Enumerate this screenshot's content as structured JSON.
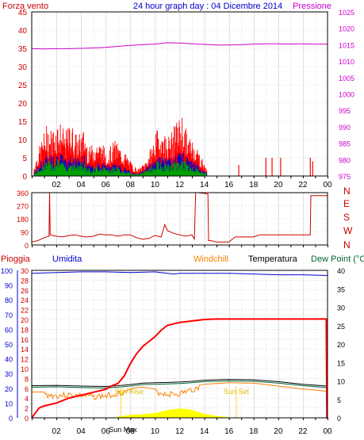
{
  "header": {
    "left_label": "Forza vento",
    "center_title": "24 hour graph day : 04 Dicembre 2014",
    "right_label": "Pressione"
  },
  "colors": {
    "wind_gust": "#ff0000",
    "wind_avg": "#0000cc",
    "wind_green": "#00a000",
    "pressure": "#cc00cc",
    "direction": "#cc0000",
    "rain": "#ff0000",
    "humidity": "#0000cc",
    "windchill": "#ff8000",
    "temperature": "#000000",
    "dewpoint": "#006633",
    "solar": "#ffff00",
    "frame": "#000000",
    "grid": "#c8c8c8",
    "left_axis_text": "#cc0000",
    "right_axis_text": "#cc00cc",
    "humidity_axis_text": "#0000cc"
  },
  "panel3_labels": {
    "pioggia": "Pioggia",
    "umidita": "Umidita",
    "windchill": "Windchill",
    "temperatura": "Temperatura",
    "dewpoint": "Dew Point (°C"
  },
  "annotations": {
    "sun_rise": "Sun Rise",
    "sun_set": "Sun Set",
    "sun_max": "Sun Max"
  },
  "x_ticks": [
    "02",
    "04",
    "06",
    "08",
    "10",
    "12",
    "14",
    "16",
    "18",
    "20",
    "22",
    "00"
  ],
  "chart_data": [
    {
      "type": "line",
      "name": "wind_pressure",
      "y_left_ticks": [
        0,
        5,
        10,
        15,
        20,
        25,
        30,
        35,
        40,
        45
      ],
      "y_right_ticks": [
        975,
        980,
        985,
        990,
        995,
        1000,
        1005,
        1010,
        1015,
        1020,
        1025
      ],
      "ylim_left": [
        0,
        45
      ],
      "ylim_right": [
        975,
        1025
      ],
      "pressure": {
        "x": [
          0,
          1,
          2,
          3,
          4,
          5,
          6,
          7,
          8,
          9,
          10,
          11,
          12,
          13,
          14,
          15,
          16,
          17,
          18,
          19,
          20,
          21,
          22,
          23,
          24
        ],
        "y": [
          1013.8,
          1013.7,
          1013.8,
          1013.8,
          1013.9,
          1014.0,
          1014.2,
          1014.5,
          1014.8,
          1015.0,
          1015.2,
          1015.6,
          1015.5,
          1015.3,
          1015.1,
          1014.9,
          1014.9,
          1015.0,
          1015.2,
          1015.3,
          1015.3,
          1015.2,
          1015.3,
          1015.2,
          1015.2
        ]
      },
      "gust_envelope": {
        "x": [
          0.2,
          0.7,
          1.2,
          1.7,
          2.2,
          2.7,
          3.2,
          3.7,
          4.2,
          4.7,
          5.2,
          5.7,
          6.2,
          6.7,
          7.2,
          7.7,
          8.2,
          8.7,
          9.2,
          9.7,
          10.2,
          10.7,
          11.2,
          11.7,
          12.2,
          12.7,
          13.2,
          13.7,
          14.2
        ],
        "y": [
          3,
          9,
          14,
          13,
          16,
          12,
          15,
          11,
          13,
          8,
          10,
          9,
          7,
          10,
          8,
          6,
          3,
          2,
          4,
          8,
          13,
          12,
          11,
          15,
          17,
          11,
          10,
          6,
          2
        ]
      },
      "avg_envelope": {
        "x": [
          0.2,
          0.7,
          1.2,
          1.7,
          2.2,
          2.7,
          3.2,
          3.7,
          4.2,
          4.7,
          5.2,
          5.7,
          6.2,
          6.7,
          7.2,
          7.7,
          8.2,
          8.7,
          9.2,
          9.7,
          10.2,
          10.7,
          11.2,
          11.7,
          12.2,
          12.7,
          13.2,
          13.7,
          14.2
        ],
        "y": [
          1,
          4,
          6,
          6,
          7,
          5,
          6,
          5,
          6,
          3,
          4,
          4,
          3,
          4,
          3,
          2,
          1,
          1,
          2,
          4,
          6,
          5,
          5,
          6,
          7,
          5,
          4,
          2,
          1
        ]
      },
      "gust_spikes": {
        "x": [
          16.8,
          19.0,
          19.5,
          20.2,
          22.6,
          22.8
        ],
        "y": [
          3,
          5,
          5,
          5,
          5,
          4
        ]
      }
    },
    {
      "type": "line",
      "name": "wind_direction",
      "y_left_ticks": [
        0,
        90,
        180,
        270,
        360
      ],
      "y_right_labels": [
        "N",
        "W",
        "S",
        "E",
        "N"
      ],
      "ylim": [
        0,
        360
      ],
      "x": [
        0.0,
        0.5,
        1.0,
        1.4,
        1.45,
        1.5,
        2.0,
        2.5,
        3.0,
        3.5,
        4.0,
        4.5,
        5.0,
        5.5,
        6.0,
        6.5,
        7.0,
        7.5,
        8.0,
        8.5,
        9.0,
        9.5,
        10.0,
        10.5,
        10.8,
        11.0,
        11.5,
        12.0,
        12.5,
        13.0,
        13.2,
        13.3,
        13.5,
        14.0,
        14.3,
        14.35,
        14.5,
        15.0,
        15.5,
        16.0,
        16.5,
        17.0,
        17.5,
        18.0,
        18.5,
        19.0,
        19.5,
        20.0,
        20.5,
        21.0,
        21.5,
        22.0,
        22.6,
        22.65,
        23.0,
        23.5,
        24.0
      ],
      "y": [
        20,
        30,
        50,
        60,
        360,
        70,
        60,
        55,
        65,
        70,
        60,
        55,
        60,
        75,
        70,
        70,
        60,
        70,
        70,
        50,
        40,
        45,
        65,
        55,
        140,
        100,
        80,
        70,
        60,
        70,
        40,
        360,
        360,
        355,
        350,
        30,
        30,
        20,
        20,
        20,
        55,
        55,
        55,
        55,
        70,
        70,
        70,
        70,
        70,
        70,
        70,
        70,
        70,
        340,
        340,
        340,
        340
      ]
    },
    {
      "type": "line",
      "name": "rain_humidity_temperature",
      "y_rain_ticks": [
        0,
        2,
        4,
        6,
        8,
        10,
        12,
        14,
        16,
        18,
        20,
        22,
        24,
        26,
        28,
        30
      ],
      "y_humidity_ticks": [
        0,
        10,
        20,
        30,
        40,
        50,
        60,
        70,
        80,
        90,
        100
      ],
      "y_temp_ticks": [
        0,
        5,
        10,
        15,
        20,
        25,
        30,
        35,
        40
      ],
      "ylim_rain": [
        0,
        30
      ],
      "ylim_humidity": [
        0,
        100
      ],
      "ylim_temp": [
        0,
        40
      ],
      "rain": {
        "x": [
          0.0,
          0.3,
          0.6,
          1.0,
          2.0,
          3.0,
          4.0,
          5.0,
          6.0,
          6.5,
          7.0,
          7.5,
          8.0,
          8.5,
          9.0,
          9.5,
          10.0,
          10.5,
          11.0,
          12.0,
          13.0,
          14.0,
          15.0,
          16.0,
          18.0,
          20.0,
          22.0,
          23.9,
          23.95,
          24.0
        ],
        "y": [
          0,
          1,
          2,
          2.4,
          3,
          4,
          4.6,
          5.2,
          5.8,
          6.5,
          7,
          8.5,
          11,
          13,
          14.5,
          15.5,
          16.5,
          17.8,
          18.8,
          19.4,
          19.7,
          20,
          20.1,
          20.1,
          20.1,
          20.1,
          20.1,
          20.1,
          0,
          0
        ]
      },
      "humidity": {
        "x": [
          0,
          2,
          4,
          6,
          8,
          10,
          11,
          11.5,
          12,
          14,
          16,
          18,
          20,
          22,
          24
        ],
        "y": [
          98,
          98.5,
          99,
          99,
          98.5,
          99,
          98,
          97.5,
          98,
          98,
          98,
          97.5,
          97,
          97,
          96.5
        ]
      },
      "windchill": {
        "x": [
          0,
          1,
          2,
          3,
          4,
          5,
          6,
          6.5,
          7,
          8,
          9,
          10,
          11,
          12,
          13,
          14,
          15,
          16,
          18,
          20,
          22,
          24
        ],
        "y": [
          7,
          7,
          6.8,
          7,
          6.8,
          6.5,
          6.7,
          7,
          7.5,
          8,
          8.3,
          7.8,
          7.2,
          7.3,
          8.4,
          9.1,
          9.3,
          9.5,
          9.4,
          8.6,
          7.8,
          7.2
        ]
      },
      "temperature": {
        "x": [
          0,
          2,
          4,
          6,
          7,
          8,
          9,
          10,
          11,
          12,
          13,
          14,
          15,
          16,
          18,
          20,
          22,
          24
        ],
        "y": [
          8.7,
          8.8,
          8.6,
          8.5,
          8.7,
          9.0,
          9.4,
          9.5,
          9.6,
          9.7,
          9.9,
          10.2,
          10.3,
          10.4,
          10.3,
          9.8,
          9.1,
          8.6
        ]
      },
      "dewpoint": {
        "x": [
          0,
          2,
          4,
          6,
          7,
          8,
          9,
          10,
          11,
          12,
          13,
          14,
          15,
          16,
          18,
          20,
          22,
          24
        ],
        "y": [
          8.3,
          8.4,
          8.2,
          8.1,
          8.3,
          8.6,
          9.0,
          9.1,
          9.2,
          9.3,
          9.5,
          9.8,
          9.9,
          10.0,
          9.9,
          9.4,
          8.7,
          8.2
        ]
      },
      "solar": {
        "x": [
          6.5,
          7.0,
          8.0,
          9.0,
          10.0,
          10.5,
          11.0,
          11.5,
          12.0,
          12.5,
          13.0,
          13.5,
          14.0,
          15.0,
          16.0,
          16.7
        ],
        "y": [
          0,
          0.3,
          0.8,
          1.0,
          1.3,
          1.7,
          2.1,
          2.3,
          2.5,
          2.4,
          2.1,
          1.6,
          1.1,
          0.5,
          0.2,
          0
        ]
      }
    }
  ]
}
